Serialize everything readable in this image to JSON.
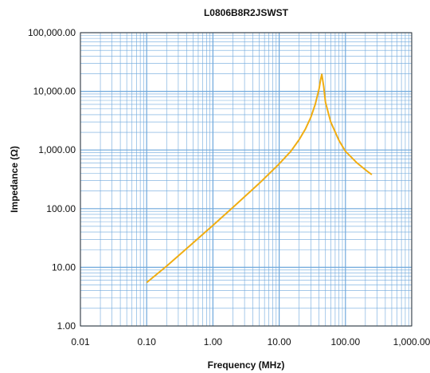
{
  "chart_data": {
    "type": "line",
    "title": "L0806B8R2JSWST",
    "xlabel": "Frequency (MHz)",
    "ylabel": "Impedance (Ω)",
    "x_scale": "log",
    "y_scale": "log",
    "xlim": [
      0.01,
      1000
    ],
    "ylim": [
      1,
      100000
    ],
    "x_ticks": [
      0.01,
      0.1,
      1,
      10,
      100,
      1000
    ],
    "x_tick_labels": [
      "0.01",
      "0.10",
      "1.00",
      "10.00",
      "100.00",
      "1,000.00"
    ],
    "y_ticks": [
      1,
      10,
      100,
      1000,
      10000,
      100000
    ],
    "y_tick_labels": [
      "1.00",
      "10.00",
      "100.00",
      "1,000.00",
      "10,000.00",
      "100,000.00"
    ],
    "grid": true,
    "colors": {
      "series": "#f0ad12",
      "grid": "#6fa8dc",
      "axis": "#333333"
    },
    "series": [
      {
        "x": [
          0.1,
          0.2,
          0.5,
          1,
          2,
          5,
          10,
          15,
          20,
          25,
          30,
          35,
          40,
          42,
          44,
          47,
          50,
          60,
          80,
          100,
          150,
          200,
          250
        ],
        "y": [
          5.5,
          10.5,
          26,
          52,
          105,
          270,
          580,
          950,
          1500,
          2300,
          3600,
          6000,
          11000,
          15500,
          19500,
          12000,
          6500,
          3000,
          1450,
          950,
          600,
          460,
          380
        ]
      }
    ]
  }
}
